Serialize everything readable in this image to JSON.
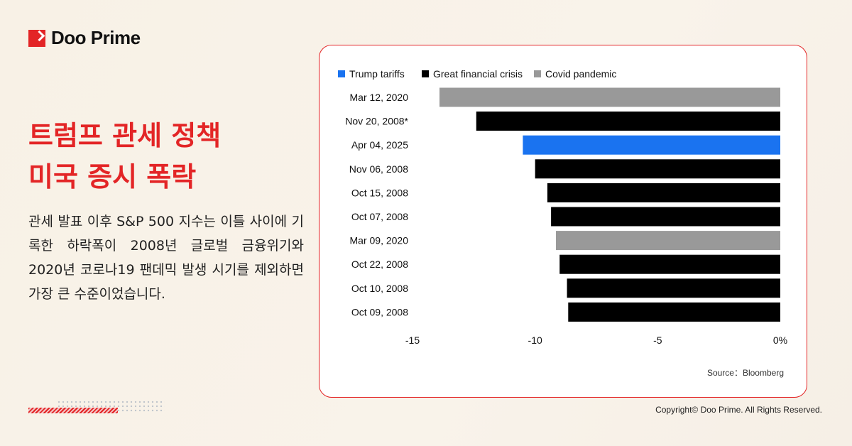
{
  "brand": {
    "name": "Doo Prime",
    "accent": "#e32526"
  },
  "headline": {
    "line1": "트럼프 관세 정책",
    "line2": "미국 증시 폭락"
  },
  "body_text": "관세 발표 이후 S&P 500 지수는 이틀 사이에 기록한 하락폭이 2008년 글로벌 금융위기와 2020년 코로나19 팬데믹 발생 시기를 제외하면 가장 큰 수준이었습니다.",
  "source": "Source：Bloomberg",
  "copyright": "Copyright© Doo Prime. All Rights Reserved.",
  "chart_data": {
    "type": "bar",
    "orientation": "horizontal",
    "legend": [
      {
        "name": "Trump tariffs",
        "color": "#1a73f0"
      },
      {
        "name": "Great financial crisis",
        "color": "#000000"
      },
      {
        "name": "Covid pandemic",
        "color": "#999999"
      }
    ],
    "legend_position": "top-left",
    "categories": [
      "Mar 12, 2020",
      "Nov 20, 2008*",
      "Apr 04, 2025",
      "Nov 06, 2008",
      "Oct 15, 2008",
      "Oct 07, 2008",
      "Mar 09, 2020",
      "Oct 22, 2008",
      "Oct 10, 2008",
      "Oct 09, 2008"
    ],
    "values": [
      -13.9,
      -12.4,
      -10.5,
      -10.0,
      -9.5,
      -9.35,
      -9.15,
      -9.0,
      -8.7,
      -8.65
    ],
    "groups": [
      "Covid pandemic",
      "Great financial crisis",
      "Trump tariffs",
      "Great financial crisis",
      "Great financial crisis",
      "Great financial crisis",
      "Covid pandemic",
      "Great financial crisis",
      "Great financial crisis",
      "Great financial crisis"
    ],
    "xlim": [
      -15,
      0
    ],
    "xticks": [
      "-15",
      "-10",
      "-5",
      "0%"
    ],
    "xtick_values": [
      -15,
      -10,
      -5,
      0
    ],
    "grid": false
  }
}
